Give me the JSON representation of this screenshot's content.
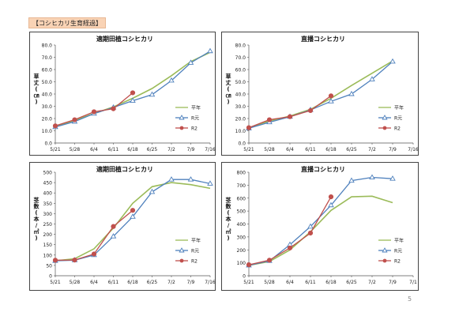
{
  "header": {
    "label": "【コシヒカリ生育経過】"
  },
  "page_number": "5",
  "chart_data": [
    {
      "type": "line",
      "title": "適期田植コシヒカリ",
      "ylabel": "草丈(㎝)",
      "x": [
        "5/21",
        "5/28",
        "6/4",
        "6/11",
        "6/18",
        "6/25",
        "7/2",
        "7/9",
        "7/16"
      ],
      "ylim": [
        0,
        80
      ],
      "yticks": [
        "0.0",
        "10.0",
        "20.0",
        "30.0",
        "40.0",
        "50.0",
        "60.0",
        "70.0",
        "80.0"
      ],
      "legend_position": "right",
      "series": [
        {
          "name": "平年",
          "color": "#9bbb59",
          "marker": "none",
          "values": [
            13.5,
            18.5,
            24.0,
            29.5,
            36.5,
            44.5,
            55.0,
            66.5,
            74.0
          ]
        },
        {
          "name": "R元",
          "color": "#4f81bd",
          "marker": "triangle",
          "values": [
            13.0,
            17.5,
            24.0,
            29.0,
            34.5,
            39.5,
            51.0,
            65.5,
            75.0
          ]
        },
        {
          "name": "R2",
          "color": "#c0504d",
          "marker": "circle",
          "values": [
            14.0,
            19.0,
            25.5,
            28.0,
            41.0,
            null,
            null,
            null,
            null
          ]
        }
      ]
    },
    {
      "type": "line",
      "title": "直播コシヒカリ",
      "ylabel": "草丈(㎝)",
      "x": [
        "5/21",
        "5/28",
        "6/4",
        "6/11",
        "6/18",
        "6/25",
        "7/2",
        "7/9",
        "7/16"
      ],
      "ylim": [
        0,
        80
      ],
      "yticks": [
        "0.0",
        "10.0",
        "20.0",
        "30.0",
        "40.0",
        "50.0",
        "60.0",
        "70.0",
        "80.0"
      ],
      "legend_position": "right",
      "series": [
        {
          "name": "平年",
          "color": "#9bbb59",
          "marker": "none",
          "values": [
            12.5,
            18.0,
            22.0,
            27.5,
            36.5,
            47.0,
            57.0,
            67.0,
            null
          ]
        },
        {
          "name": "R元",
          "color": "#4f81bd",
          "marker": "triangle",
          "values": [
            12.0,
            17.0,
            21.5,
            27.0,
            34.0,
            40.0,
            52.0,
            66.5,
            null
          ]
        },
        {
          "name": "R2",
          "color": "#c0504d",
          "marker": "circle",
          "values": [
            12.5,
            19.0,
            21.5,
            26.5,
            38.5,
            null,
            null,
            null,
            null
          ]
        }
      ]
    },
    {
      "type": "line",
      "title": "適期田植コシヒカリ",
      "ylabel": "茎数(本/㎡)",
      "x": [
        "5/21",
        "5/28",
        "6/4",
        "6/11",
        "6/18",
        "6/25",
        "7/2",
        "7/9",
        "7/16"
      ],
      "ylim": [
        0,
        500
      ],
      "yticks": [
        "0",
        "50",
        "100",
        "150",
        "200",
        "250",
        "300",
        "350",
        "400",
        "450",
        "500"
      ],
      "legend_position": "right",
      "series": [
        {
          "name": "平年",
          "color": "#9bbb59",
          "marker": "none",
          "values": [
            72,
            82,
            130,
            230,
            350,
            430,
            450,
            440,
            422
          ]
        },
        {
          "name": "R元",
          "color": "#4f81bd",
          "marker": "triangle",
          "values": [
            72,
            75,
            100,
            190,
            285,
            405,
            465,
            465,
            445
          ]
        },
        {
          "name": "R2",
          "color": "#c0504d",
          "marker": "circle",
          "values": [
            75,
            76,
            105,
            238,
            316,
            null,
            null,
            null,
            null
          ]
        }
      ]
    },
    {
      "type": "line",
      "title": "直播コシヒカリ",
      "ylabel": "茎数(本/㎡)",
      "x": [
        "5/21",
        "5/28",
        "6/4",
        "6/11",
        "6/18",
        "6/25",
        "7/2",
        "7/9",
        "7/1"
      ],
      "ylim": [
        0,
        800
      ],
      "yticks": [
        "0",
        "100",
        "200",
        "300",
        "400",
        "500",
        "600",
        "700",
        "800"
      ],
      "legend_position": "right",
      "series": [
        {
          "name": "平年",
          "color": "#9bbb59",
          "marker": "none",
          "values": [
            80,
            110,
            200,
            340,
            505,
            610,
            615,
            565,
            null
          ]
        },
        {
          "name": "R元",
          "color": "#4f81bd",
          "marker": "triangle",
          "values": [
            80,
            115,
            240,
            380,
            545,
            735,
            760,
            750,
            null
          ]
        },
        {
          "name": "R2",
          "color": "#c0504d",
          "marker": "circle",
          "values": [
            85,
            120,
            215,
            330,
            610,
            null,
            null,
            null,
            null
          ]
        }
      ]
    }
  ]
}
